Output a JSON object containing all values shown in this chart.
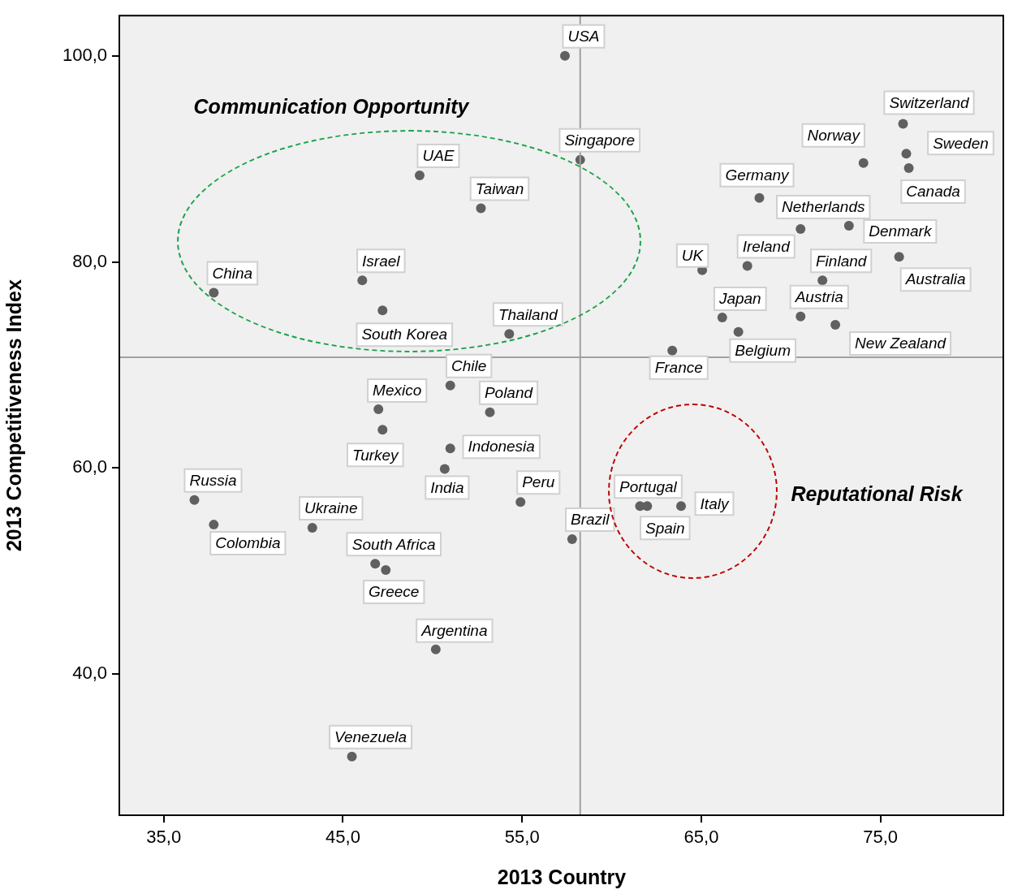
{
  "chart_data": {
    "type": "scatter",
    "xlabel": "2013 Country",
    "ylabel": "2013 Competitiveness Index",
    "xlim": [
      32.52,
      81.9
    ],
    "ylim": [
      26.3,
      103.9
    ],
    "xticks": [
      {
        "value": 35,
        "label": "35,0"
      },
      {
        "value": 45,
        "label": "45,0"
      },
      {
        "value": 55,
        "label": "55,0"
      },
      {
        "value": 65,
        "label": "65,0"
      },
      {
        "value": 75,
        "label": "75,0"
      }
    ],
    "yticks": [
      {
        "value": 40,
        "label": "40,0"
      },
      {
        "value": 60,
        "label": "60,0"
      },
      {
        "value": 80,
        "label": "80,0"
      },
      {
        "value": 100,
        "label": "100,0"
      }
    ],
    "grid": false,
    "legend": false,
    "marker": "circle",
    "ref_lines": [
      {
        "axis": "x",
        "value": 58.24,
        "color": "#a0a0a0"
      },
      {
        "axis": "y",
        "value": 70.74,
        "color": "#a0a0a0"
      }
    ],
    "annotations": [
      "Communication Opportunity",
      "Reputational Risk"
    ],
    "series": [
      {
        "name": "USA",
        "color": "#606060",
        "x": [
          57.39
        ],
        "values": [
          100.0
        ]
      },
      {
        "name": "Singapore",
        "color": "#606060",
        "x": [
          58.24
        ],
        "values": [
          89.9
        ]
      },
      {
        "name": "UAE",
        "color": "#606060",
        "x": [
          49.28
        ],
        "values": [
          88.4
        ]
      },
      {
        "name": "Taiwan",
        "color": "#606060",
        "x": [
          52.7
        ],
        "values": [
          85.2
        ]
      },
      {
        "name": "China",
        "color": "#606060",
        "x": [
          37.79
        ],
        "values": [
          77.0
        ]
      },
      {
        "name": "Israel",
        "color": "#606060",
        "x": [
          46.08
        ],
        "values": [
          78.2
        ]
      },
      {
        "name": "South Korea",
        "color": "#606060",
        "x": [
          47.21
        ],
        "values": [
          75.3
        ]
      },
      {
        "name": "Thailand",
        "color": "#606060",
        "x": [
          54.28
        ],
        "values": [
          73.0
        ]
      },
      {
        "name": "Chile",
        "color": "#606060",
        "x": [
          50.99
        ],
        "values": [
          68.0
        ]
      },
      {
        "name": "Mexico",
        "color": "#606060",
        "x": [
          46.98
        ],
        "values": [
          65.7
        ]
      },
      {
        "name": "Turkey",
        "color": "#606060",
        "x": [
          47.21
        ],
        "values": [
          63.7
        ]
      },
      {
        "name": "Poland",
        "color": "#606060",
        "x": [
          53.2
        ],
        "values": [
          65.4
        ]
      },
      {
        "name": "Indonesia",
        "color": "#606060",
        "x": [
          50.99
        ],
        "values": [
          61.9
        ]
      },
      {
        "name": "India",
        "color": "#606060",
        "x": [
          50.68
        ],
        "values": [
          59.9
        ]
      },
      {
        "name": "Peru",
        "color": "#606060",
        "x": [
          54.91
        ],
        "values": [
          56.7
        ]
      },
      {
        "name": "Brazil",
        "color": "#606060",
        "x": [
          57.79
        ],
        "values": [
          53.1
        ]
      },
      {
        "name": "Russia",
        "color": "#606060",
        "x": [
          36.71
        ],
        "values": [
          56.9
        ]
      },
      {
        "name": "Colombia",
        "color": "#606060",
        "x": [
          37.79
        ],
        "values": [
          54.5
        ]
      },
      {
        "name": "Ukraine",
        "color": "#606060",
        "x": [
          43.29
        ],
        "values": [
          54.2
        ]
      },
      {
        "name": "South Africa",
        "color": "#606060",
        "x": [
          46.8
        ],
        "values": [
          50.7
        ]
      },
      {
        "name": "Greece",
        "color": "#606060",
        "x": [
          47.39
        ],
        "values": [
          50.1
        ]
      },
      {
        "name": "Argentina",
        "color": "#606060",
        "x": [
          50.18
        ],
        "values": [
          42.4
        ]
      },
      {
        "name": "Venezuela",
        "color": "#606060",
        "x": [
          45.5
        ],
        "values": [
          32.0
        ]
      },
      {
        "name": "Portugal",
        "color": "#606060",
        "x": [
          61.58
        ],
        "values": [
          56.3
        ]
      },
      {
        "name": "Spain",
        "color": "#606060",
        "x": [
          61.98
        ],
        "values": [
          56.3
        ]
      },
      {
        "name": "Italy",
        "color": "#606060",
        "x": [
          63.87
        ],
        "values": [
          56.3
        ]
      },
      {
        "name": "France",
        "color": "#606060",
        "x": [
          63.38
        ],
        "values": [
          71.4
        ]
      },
      {
        "name": "UK",
        "color": "#606060",
        "x": [
          65.05
        ],
        "values": [
          79.2
        ]
      },
      {
        "name": "Japan",
        "color": "#606060",
        "x": [
          66.17
        ],
        "values": [
          74.6
        ]
      },
      {
        "name": "Belgium",
        "color": "#606060",
        "x": [
          67.07
        ],
        "values": [
          73.2
        ]
      },
      {
        "name": "Ireland",
        "color": "#606060",
        "x": [
          67.57
        ],
        "values": [
          79.6
        ]
      },
      {
        "name": "Germany",
        "color": "#606060",
        "x": [
          68.24
        ],
        "values": [
          86.2
        ]
      },
      {
        "name": "Netherlands",
        "color": "#606060",
        "x": [
          70.54
        ],
        "values": [
          83.2
        ]
      },
      {
        "name": "Austria",
        "color": "#606060",
        "x": [
          70.54
        ],
        "values": [
          74.7
        ]
      },
      {
        "name": "Finland",
        "color": "#606060",
        "x": [
          71.76
        ],
        "values": [
          78.2
        ]
      },
      {
        "name": "New Zealand",
        "color": "#606060",
        "x": [
          72.48
        ],
        "values": [
          73.9
        ]
      },
      {
        "name": "Norway",
        "color": "#606060",
        "x": [
          74.05
        ],
        "values": [
          89.6
        ]
      },
      {
        "name": "Denmark",
        "color": "#606060",
        "x": [
          73.24
        ],
        "values": [
          83.5
        ]
      },
      {
        "name": "Australia",
        "color": "#606060",
        "x": [
          76.04
        ],
        "values": [
          80.5
        ]
      },
      {
        "name": "Switzerland",
        "color": "#606060",
        "x": [
          76.26
        ],
        "values": [
          93.4
        ]
      },
      {
        "name": "Sweden",
        "color": "#606060",
        "x": [
          76.44
        ],
        "values": [
          90.5
        ]
      },
      {
        "name": "Canada",
        "color": "#606060",
        "x": [
          76.58
        ],
        "values": [
          89.1
        ]
      }
    ]
  }
}
